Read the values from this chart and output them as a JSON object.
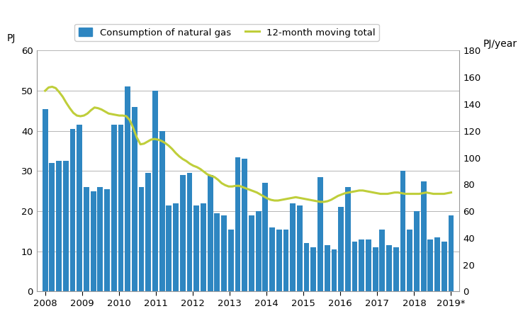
{
  "bar_color": "#2E86C1",
  "line_color": "#BFCE3A",
  "ylabel_left": "PJ",
  "ylabel_right": "PJ/year",
  "ylim_left": [
    0,
    60
  ],
  "ylim_right": [
    0,
    180
  ],
  "yticks_left": [
    0,
    10,
    20,
    30,
    40,
    50,
    60
  ],
  "yticks_right": [
    0,
    20,
    40,
    60,
    80,
    100,
    120,
    140,
    160,
    180
  ],
  "bar_label": "Consumption of natural gas",
  "line_label": "12-month moving total",
  "x_tick_labels": [
    "2008",
    "2009",
    "2010",
    "2011",
    "2012",
    "2013",
    "2014",
    "2015",
    "2016",
    "2017",
    "2018",
    "2019*"
  ],
  "bar_values": [
    45.5,
    32.0,
    32.5,
    32.5,
    40.5,
    41.5,
    26.0,
    25.0,
    26.0,
    25.5,
    41.5,
    41.5,
    51.0,
    46.0,
    26.0,
    29.5,
    50.0,
    40.0,
    21.5,
    22.0,
    29.0,
    29.5,
    21.5,
    22.0,
    29.0,
    19.5,
    19.0,
    15.5,
    33.5,
    33.0,
    19.0,
    20.0,
    27.0,
    16.0,
    15.5,
    15.5,
    22.0,
    21.5,
    12.0,
    11.0,
    28.5,
    11.5,
    10.5,
    21.0,
    26.0,
    12.5,
    13.0,
    13.0,
    11.0,
    15.5,
    11.5,
    11.0,
    30.0,
    15.5,
    20.0,
    27.5,
    13.0,
    13.5,
    12.5,
    19.0
  ],
  "line_values": [
    150.0,
    152.5,
    153.0,
    152.0,
    149.0,
    145.5,
    141.0,
    137.0,
    133.5,
    131.5,
    131.0,
    131.5,
    133.0,
    135.5,
    137.5,
    137.0,
    136.0,
    134.5,
    133.0,
    132.5,
    132.0,
    131.5,
    131.5,
    131.0,
    128.0,
    122.0,
    115.0,
    110.0,
    110.5,
    112.0,
    113.5,
    114.0,
    113.5,
    112.5,
    111.0,
    109.0,
    106.5,
    103.5,
    101.0,
    99.0,
    97.5,
    95.5,
    94.0,
    93.0,
    91.5,
    89.5,
    87.5,
    86.5,
    85.5,
    83.5,
    81.0,
    79.5,
    78.5,
    78.5,
    79.0,
    79.0,
    78.0,
    77.0,
    76.0,
    75.0,
    74.0,
    72.5,
    71.0,
    69.5,
    68.5,
    68.0,
    68.0,
    68.5,
    69.0,
    69.5,
    70.0,
    70.5,
    70.0,
    69.5,
    69.0,
    68.5,
    68.0,
    67.5,
    67.0,
    67.0,
    67.5,
    68.5,
    70.0,
    71.5,
    72.5,
    73.5,
    74.0,
    74.5,
    75.0,
    75.5,
    75.5,
    75.0,
    74.5,
    74.0,
    73.5,
    73.0,
    73.0,
    73.0,
    73.5,
    74.0,
    74.0,
    73.5,
    73.0,
    73.0,
    73.0,
    73.0,
    73.0,
    73.5,
    74.0,
    73.5,
    73.0,
    73.0,
    73.0,
    73.0,
    73.5,
    74.0
  ],
  "background_color": "#ffffff",
  "grid_color": "#aaaaaa",
  "font_size_ticks": 9.5,
  "font_size_labels": 10
}
